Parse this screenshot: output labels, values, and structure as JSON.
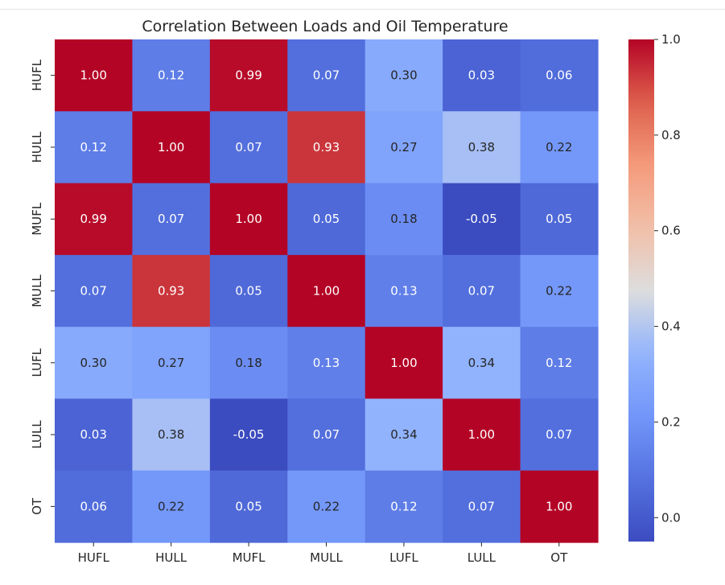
{
  "chart_data": {
    "type": "heatmap",
    "title": "Correlation Between Loads and Oil Temperature",
    "xlabel": "",
    "ylabel": "",
    "x_categories": [
      "HUFL",
      "HULL",
      "MUFL",
      "MULL",
      "LUFL",
      "LULL",
      "OT"
    ],
    "y_categories": [
      "HUFL",
      "HULL",
      "MUFL",
      "MULL",
      "LUFL",
      "LULL",
      "OT"
    ],
    "values": [
      [
        1.0,
        0.12,
        0.99,
        0.07,
        0.3,
        0.03,
        0.06
      ],
      [
        0.12,
        1.0,
        0.07,
        0.93,
        0.27,
        0.38,
        0.22
      ],
      [
        0.99,
        0.07,
        1.0,
        0.05,
        0.18,
        -0.05,
        0.05
      ],
      [
        0.07,
        0.93,
        0.05,
        1.0,
        0.13,
        0.07,
        0.22
      ],
      [
        0.3,
        0.27,
        0.18,
        0.13,
        1.0,
        0.34,
        0.12
      ],
      [
        0.03,
        0.38,
        -0.05,
        0.07,
        0.34,
        1.0,
        0.07
      ],
      [
        0.06,
        0.22,
        0.05,
        0.22,
        0.12,
        0.07,
        1.0
      ]
    ],
    "value_labels": [
      [
        "1.00",
        "0.12",
        "0.99",
        "0.07",
        "0.30",
        "0.03",
        "0.06"
      ],
      [
        "0.12",
        "1.00",
        "0.07",
        "0.93",
        "0.27",
        "0.38",
        "0.22"
      ],
      [
        "0.99",
        "0.07",
        "1.00",
        "0.05",
        "0.18",
        "-0.05",
        "0.05"
      ],
      [
        "0.07",
        "0.93",
        "0.05",
        "1.00",
        "0.13",
        "0.07",
        "0.22"
      ],
      [
        "0.30",
        "0.27",
        "0.18",
        "0.13",
        "1.00",
        "0.34",
        "0.12"
      ],
      [
        "0.03",
        "0.38",
        "-0.05",
        "0.07",
        "0.34",
        "1.00",
        "0.07"
      ],
      [
        "0.06",
        "0.22",
        "0.05",
        "0.22",
        "0.12",
        "0.07",
        "1.00"
      ]
    ],
    "colormap": "coolwarm",
    "colorbar": {
      "vmin": -0.05,
      "vmax": 1.0,
      "ticks": [
        0.0,
        0.2,
        0.4,
        0.6,
        0.8,
        1.0
      ],
      "tick_labels": [
        "0.0",
        "0.2",
        "0.4",
        "0.6",
        "0.8",
        "1.0"
      ],
      "low_color": "#3b4cc0",
      "mid_color": "#dddddd",
      "high_color": "#b40426"
    }
  }
}
